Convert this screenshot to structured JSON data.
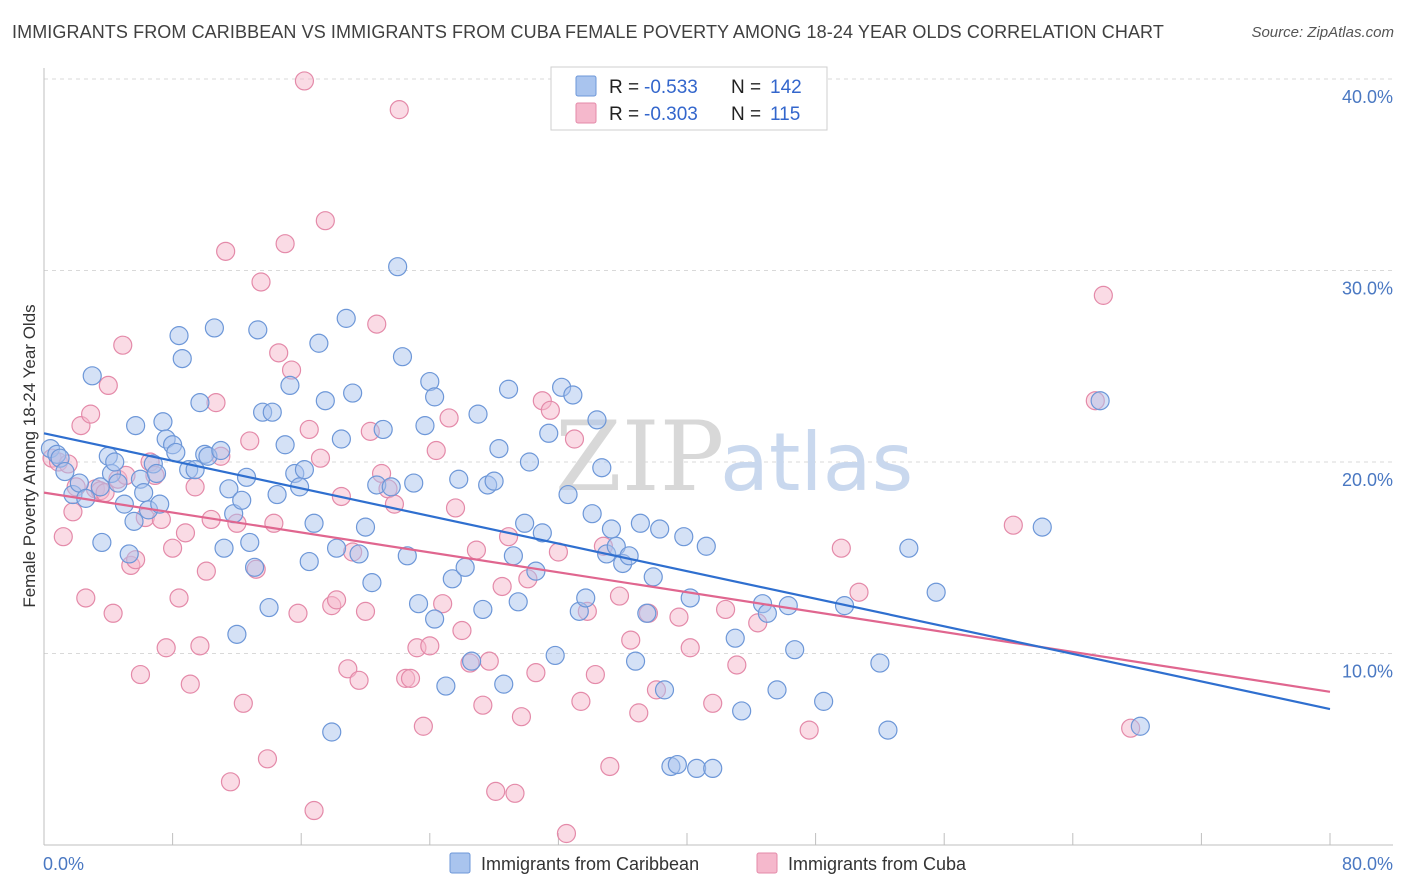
{
  "title": "IMMIGRANTS FROM CARIBBEAN VS IMMIGRANTS FROM CUBA FEMALE POVERTY AMONG 18-24 YEAR OLDS CORRELATION CHART",
  "source": "Source: ZipAtlas.com",
  "watermark": {
    "zip": "ZIP",
    "atlas": "atlas"
  },
  "colors": {
    "caribbean_fill": "#a9c4ee",
    "caribbean_stroke": "#6d97d8",
    "caribbean_line": "#2f6fcf",
    "cuba_fill": "#f5b8cc",
    "cuba_stroke": "#e48aa9",
    "cuba_line": "#e0668f",
    "grid": "#d9d9d9",
    "tick_label": "#4a78c2"
  },
  "legend": {
    "rows": [
      {
        "r_label": "R = ",
        "r_value": "-0.533",
        "n_label": "N = ",
        "n_value": "142"
      },
      {
        "r_label": "R = ",
        "r_value": "-0.303",
        "n_label": "N = ",
        "n_value": "115"
      }
    ]
  },
  "chart_data": {
    "type": "scatter",
    "title": "IMMIGRANTS FROM CARIBBEAN VS IMMIGRANTS FROM CUBA FEMALE POVERTY AMONG 18-24 YEAR OLDS CORRELATION CHART",
    "xlabel": "",
    "ylabel": "Female Poverty Among 18-24 Year Olds",
    "xlim": [
      0,
      80
    ],
    "ylim": [
      0,
      40
    ],
    "x_tick_labels": [
      "0.0%",
      "80.0%"
    ],
    "y_ticks": [
      10,
      20,
      30,
      40
    ],
    "y_tick_labels": [
      "10.0%",
      "20.0%",
      "30.0%",
      "40.0%"
    ],
    "grid": "horizontal dashed",
    "legend_position": "top-center",
    "series": [
      {
        "name": "Immigrants from Caribbean",
        "r": -0.533,
        "n": 142,
        "trend": {
          "x": [
            0,
            80
          ],
          "y": [
            21.5,
            7.1
          ]
        },
        "points": [
          [
            0.4,
            20.7
          ],
          [
            0.8,
            20.4
          ],
          [
            1.0,
            20.2
          ],
          [
            1.3,
            19.5
          ],
          [
            1.8,
            18.3
          ],
          [
            2.2,
            18.9
          ],
          [
            2.6,
            18.1
          ],
          [
            3.0,
            24.5
          ],
          [
            3.5,
            18.7
          ],
          [
            3.6,
            15.8
          ],
          [
            4.0,
            20.3
          ],
          [
            4.2,
            19.4
          ],
          [
            4.4,
            20.0
          ],
          [
            4.6,
            18.9
          ],
          [
            5.0,
            17.8
          ],
          [
            5.3,
            15.2
          ],
          [
            5.6,
            16.9
          ],
          [
            5.7,
            21.9
          ],
          [
            6.0,
            19.1
          ],
          [
            6.2,
            18.4
          ],
          [
            6.5,
            17.5
          ],
          [
            6.8,
            19.9
          ],
          [
            7.0,
            19.4
          ],
          [
            7.2,
            17.8
          ],
          [
            7.4,
            22.1
          ],
          [
            7.6,
            21.2
          ],
          [
            8.0,
            20.9
          ],
          [
            8.2,
            20.5
          ],
          [
            8.4,
            26.6
          ],
          [
            8.6,
            25.4
          ],
          [
            9.0,
            19.6
          ],
          [
            9.4,
            19.6
          ],
          [
            9.7,
            23.1
          ],
          [
            10.0,
            20.4
          ],
          [
            10.2,
            20.3
          ],
          [
            10.6,
            27.0
          ],
          [
            11.0,
            20.6
          ],
          [
            11.2,
            15.5
          ],
          [
            11.5,
            18.6
          ],
          [
            11.8,
            17.3
          ],
          [
            12.0,
            11.0
          ],
          [
            12.3,
            18.0
          ],
          [
            12.6,
            19.2
          ],
          [
            12.8,
            15.8
          ],
          [
            13.1,
            14.5
          ],
          [
            13.3,
            26.9
          ],
          [
            13.6,
            22.6
          ],
          [
            14.0,
            12.4
          ],
          [
            14.2,
            22.6
          ],
          [
            14.5,
            18.3
          ],
          [
            15.0,
            20.9
          ],
          [
            15.3,
            24.0
          ],
          [
            15.6,
            19.4
          ],
          [
            15.9,
            18.7
          ],
          [
            16.2,
            19.6
          ],
          [
            16.5,
            14.8
          ],
          [
            16.8,
            16.8
          ],
          [
            17.1,
            26.2
          ],
          [
            17.5,
            23.2
          ],
          [
            17.9,
            5.9
          ],
          [
            18.2,
            15.5
          ],
          [
            18.5,
            21.2
          ],
          [
            18.8,
            27.5
          ],
          [
            19.2,
            23.6
          ],
          [
            19.6,
            15.2
          ],
          [
            20.0,
            16.6
          ],
          [
            20.4,
            13.7
          ],
          [
            20.7,
            18.8
          ],
          [
            21.1,
            21.7
          ],
          [
            21.6,
            18.7
          ],
          [
            22.0,
            30.2
          ],
          [
            22.3,
            25.5
          ],
          [
            22.6,
            15.1
          ],
          [
            23.0,
            18.9
          ],
          [
            23.3,
            12.6
          ],
          [
            23.7,
            21.9
          ],
          [
            24.0,
            24.2
          ],
          [
            24.3,
            11.8
          ],
          [
            24.3,
            23.4
          ],
          [
            25.0,
            8.3
          ],
          [
            25.4,
            13.9
          ],
          [
            25.8,
            19.1
          ],
          [
            26.2,
            14.5
          ],
          [
            26.6,
            9.6
          ],
          [
            27.0,
            22.5
          ],
          [
            27.3,
            12.3
          ],
          [
            27.6,
            18.8
          ],
          [
            28.0,
            19.0
          ],
          [
            28.3,
            20.7
          ],
          [
            28.6,
            8.4
          ],
          [
            28.9,
            23.8
          ],
          [
            29.2,
            15.1
          ],
          [
            29.5,
            12.7
          ],
          [
            29.9,
            16.8
          ],
          [
            30.2,
            20.0
          ],
          [
            30.6,
            14.3
          ],
          [
            31.0,
            16.3
          ],
          [
            31.4,
            21.5
          ],
          [
            31.8,
            9.9
          ],
          [
            32.2,
            23.9
          ],
          [
            32.6,
            18.3
          ],
          [
            32.9,
            23.5
          ],
          [
            33.3,
            12.2
          ],
          [
            33.7,
            12.9
          ],
          [
            34.1,
            17.3
          ],
          [
            34.4,
            22.2
          ],
          [
            34.7,
            19.7
          ],
          [
            35.0,
            15.2
          ],
          [
            35.3,
            16.5
          ],
          [
            35.6,
            15.6
          ],
          [
            36.0,
            14.7
          ],
          [
            36.4,
            15.1
          ],
          [
            36.8,
            9.6
          ],
          [
            37.1,
            16.8
          ],
          [
            37.5,
            12.1
          ],
          [
            37.9,
            14.0
          ],
          [
            38.3,
            16.5
          ],
          [
            38.6,
            8.1
          ],
          [
            39.0,
            4.1
          ],
          [
            39.4,
            4.2
          ],
          [
            39.8,
            16.1
          ],
          [
            40.2,
            12.9
          ],
          [
            40.6,
            4.0
          ],
          [
            41.2,
            15.6
          ],
          [
            41.6,
            4.0
          ],
          [
            43.0,
            10.8
          ],
          [
            43.4,
            7.0
          ],
          [
            44.7,
            12.6
          ],
          [
            45.0,
            12.1
          ],
          [
            45.6,
            8.1
          ],
          [
            46.3,
            12.5
          ],
          [
            46.7,
            10.2
          ],
          [
            48.5,
            7.5
          ],
          [
            49.8,
            12.5
          ],
          [
            52.0,
            9.5
          ],
          [
            52.5,
            6.0
          ],
          [
            53.8,
            15.5
          ],
          [
            55.5,
            13.2
          ],
          [
            62.1,
            16.6
          ],
          [
            65.7,
            23.2
          ],
          [
            68.2,
            6.2
          ]
        ]
      },
      {
        "name": "Immigrants from Cuba",
        "r": -0.303,
        "n": 115,
        "trend": {
          "x": [
            0,
            80
          ],
          "y": [
            18.4,
            8.0
          ]
        },
        "points": [
          [
            0.5,
            20.2
          ],
          [
            0.9,
            20.0
          ],
          [
            1.2,
            16.1
          ],
          [
            1.5,
            19.9
          ],
          [
            1.8,
            17.4
          ],
          [
            2.0,
            18.7
          ],
          [
            2.3,
            21.9
          ],
          [
            2.6,
            12.9
          ],
          [
            2.9,
            22.5
          ],
          [
            3.2,
            18.6
          ],
          [
            3.5,
            18.5
          ],
          [
            3.8,
            18.4
          ],
          [
            4.0,
            24.0
          ],
          [
            4.3,
            12.1
          ],
          [
            4.6,
            19.1
          ],
          [
            4.9,
            26.1
          ],
          [
            5.1,
            19.3
          ],
          [
            5.4,
            14.6
          ],
          [
            5.7,
            14.9
          ],
          [
            6.0,
            8.9
          ],
          [
            6.3,
            17.1
          ],
          [
            6.6,
            20.0
          ],
          [
            6.9,
            19.3
          ],
          [
            7.3,
            17.0
          ],
          [
            7.6,
            10.3
          ],
          [
            8.0,
            15.5
          ],
          [
            8.4,
            12.9
          ],
          [
            8.8,
            16.3
          ],
          [
            9.1,
            8.4
          ],
          [
            9.4,
            18.7
          ],
          [
            9.7,
            10.4
          ],
          [
            10.1,
            14.3
          ],
          [
            10.4,
            17.0
          ],
          [
            10.7,
            23.1
          ],
          [
            11.0,
            20.3
          ],
          [
            11.3,
            31.0
          ],
          [
            11.6,
            3.3
          ],
          [
            12.0,
            16.8
          ],
          [
            12.4,
            7.4
          ],
          [
            12.8,
            21.1
          ],
          [
            13.2,
            14.4
          ],
          [
            13.5,
            29.4
          ],
          [
            13.9,
            4.5
          ],
          [
            14.3,
            16.8
          ],
          [
            14.6,
            25.7
          ],
          [
            15.0,
            31.4
          ],
          [
            15.4,
            24.8
          ],
          [
            15.8,
            12.1
          ],
          [
            16.2,
            39.9
          ],
          [
            16.5,
            21.7
          ],
          [
            16.8,
            1.8
          ],
          [
            17.2,
            20.2
          ],
          [
            17.5,
            32.6
          ],
          [
            17.9,
            12.5
          ],
          [
            18.2,
            12.8
          ],
          [
            18.5,
            18.2
          ],
          [
            18.9,
            9.2
          ],
          [
            19.2,
            15.3
          ],
          [
            19.6,
            8.6
          ],
          [
            20.0,
            12.2
          ],
          [
            20.3,
            21.6
          ],
          [
            20.7,
            27.2
          ],
          [
            21.0,
            19.4
          ],
          [
            21.4,
            18.6
          ],
          [
            21.8,
            17.8
          ],
          [
            22.1,
            38.4
          ],
          [
            22.5,
            8.7
          ],
          [
            22.8,
            8.7
          ],
          [
            23.2,
            10.3
          ],
          [
            23.6,
            6.2
          ],
          [
            24.0,
            10.4
          ],
          [
            24.4,
            20.6
          ],
          [
            24.8,
            12.6
          ],
          [
            25.2,
            22.3
          ],
          [
            25.6,
            17.6
          ],
          [
            26.0,
            11.2
          ],
          [
            26.5,
            9.5
          ],
          [
            26.9,
            15.4
          ],
          [
            27.3,
            7.3
          ],
          [
            27.7,
            9.6
          ],
          [
            28.1,
            2.8
          ],
          [
            28.5,
            13.5
          ],
          [
            28.9,
            16.1
          ],
          [
            29.3,
            2.7
          ],
          [
            29.7,
            6.7
          ],
          [
            30.1,
            13.9
          ],
          [
            30.6,
            9.0
          ],
          [
            31.0,
            23.2
          ],
          [
            31.5,
            22.7
          ],
          [
            32.0,
            15.3
          ],
          [
            32.5,
            0.6
          ],
          [
            33.0,
            21.2
          ],
          [
            33.4,
            7.5
          ],
          [
            33.8,
            12.2
          ],
          [
            34.3,
            8.9
          ],
          [
            34.8,
            15.6
          ],
          [
            35.2,
            4.1
          ],
          [
            35.8,
            13.0
          ],
          [
            36.5,
            10.7
          ],
          [
            37.0,
            6.9
          ],
          [
            37.6,
            12.1
          ],
          [
            38.1,
            8.1
          ],
          [
            39.5,
            11.9
          ],
          [
            40.2,
            10.3
          ],
          [
            41.6,
            7.4
          ],
          [
            42.4,
            12.3
          ],
          [
            43.1,
            9.4
          ],
          [
            44.4,
            11.6
          ],
          [
            47.6,
            6.0
          ],
          [
            49.6,
            15.5
          ],
          [
            50.7,
            13.2
          ],
          [
            60.3,
            16.7
          ],
          [
            65.4,
            23.2
          ],
          [
            65.9,
            28.7
          ],
          [
            67.6,
            6.1
          ]
        ]
      }
    ]
  }
}
